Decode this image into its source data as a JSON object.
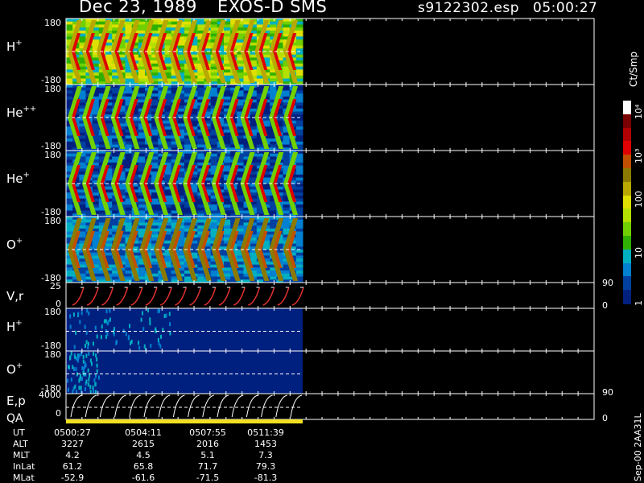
{
  "header": {
    "date": "Dec 23, 1989",
    "instrument": "EXOS-D SMS",
    "file": "s9122302.esp",
    "time": "05:00:27"
  },
  "panels": [
    {
      "label": "H",
      "sup": "+",
      "ymax": "180",
      "ymin": "-180"
    },
    {
      "label": "He",
      "sup": "++",
      "ymax": "180",
      "ymin": "-180"
    },
    {
      "label": "He",
      "sup": "+",
      "ymax": "180",
      "ymin": "-180"
    },
    {
      "label": "O",
      "sup": "+",
      "ymax": "180",
      "ymin": "-180"
    }
  ],
  "vr_panel": {
    "label": "V,r",
    "ymax": "25",
    "ymin": "0",
    "right_max": "90",
    "right_min": "0"
  },
  "low_panels": [
    {
      "label": "H",
      "sup": "+",
      "ymax": "180",
      "ymin": "-180"
    },
    {
      "label": "O",
      "sup": "+",
      "ymax": "180",
      "ymin": "-180"
    }
  ],
  "ep_panel": {
    "label": "E,p",
    "ymax": "4000",
    "ymin": "0",
    "right_max": "90",
    "right_min": "0"
  },
  "qa_label": "QA",
  "colorbar": {
    "title": "Ct/Smp",
    "ticks": [
      "10⁴",
      "10³",
      "100",
      "10",
      "1"
    ],
    "colors": [
      "#ffffff",
      "#7a0000",
      "#b00000",
      "#e00000",
      "#c05000",
      "#8c7a00",
      "#b8a800",
      "#e0e000",
      "#b4e000",
      "#70d000",
      "#30b000",
      "#00b0c0",
      "#0080d0",
      "#0040a0",
      "#002080"
    ]
  },
  "footer": {
    "row_labels": [
      "UT",
      "ALT",
      "MLT",
      "InLat",
      "MLat"
    ],
    "columns": [
      [
        "0500:27",
        "3227",
        "4.2",
        "61.2",
        "-52.9"
      ],
      [
        "0504:11",
        "2615",
        "4.5",
        "65.8",
        "-61.6"
      ],
      [
        "0507:55",
        "2016",
        "5.1",
        "71.7",
        "-71.5"
      ],
      [
        "0511:39",
        "1453",
        "7.3",
        "79.3",
        "-81.3"
      ]
    ]
  },
  "signature": "Sep-00 2AA31L",
  "chart_data": {
    "type": "heatmap",
    "title": "Dec 23, 1989 EXOS-D SMS",
    "ylabel_units": "Ct/Smp",
    "color_scale": "log",
    "color_range": [
      1,
      10000
    ],
    "x": [
      "0500:27",
      "0504:11",
      "0507:55",
      "0511:39"
    ],
    "series": [
      {
        "name": "H+",
        "ylim": [
          -180,
          180
        ]
      },
      {
        "name": "He++",
        "ylim": [
          -180,
          180
        ]
      },
      {
        "name": "He+",
        "ylim": [
          -180,
          180
        ]
      },
      {
        "name": "O+",
        "ylim": [
          -180,
          180
        ]
      },
      {
        "name": "V,r",
        "ylim": [
          0,
          25
        ],
        "ylim_right": [
          0,
          90
        ]
      },
      {
        "name": "H+",
        "ylim": [
          -180,
          180
        ]
      },
      {
        "name": "O+",
        "ylim": [
          -180,
          180
        ]
      },
      {
        "name": "E,p",
        "ylim": [
          0,
          4000
        ],
        "ylim_right": [
          0,
          90
        ]
      }
    ],
    "ephemeris": {
      "UT": [
        "0500:27",
        "0504:11",
        "0507:55",
        "0511:39"
      ],
      "ALT": [
        3227,
        2615,
        2016,
        1453
      ],
      "MLT": [
        4.2,
        4.5,
        5.1,
        7.3
      ],
      "InLat": [
        61.2,
        65.8,
        71.7,
        79.3
      ],
      "MLat": [
        -52.9,
        -61.6,
        -71.5,
        -81.3
      ]
    }
  }
}
